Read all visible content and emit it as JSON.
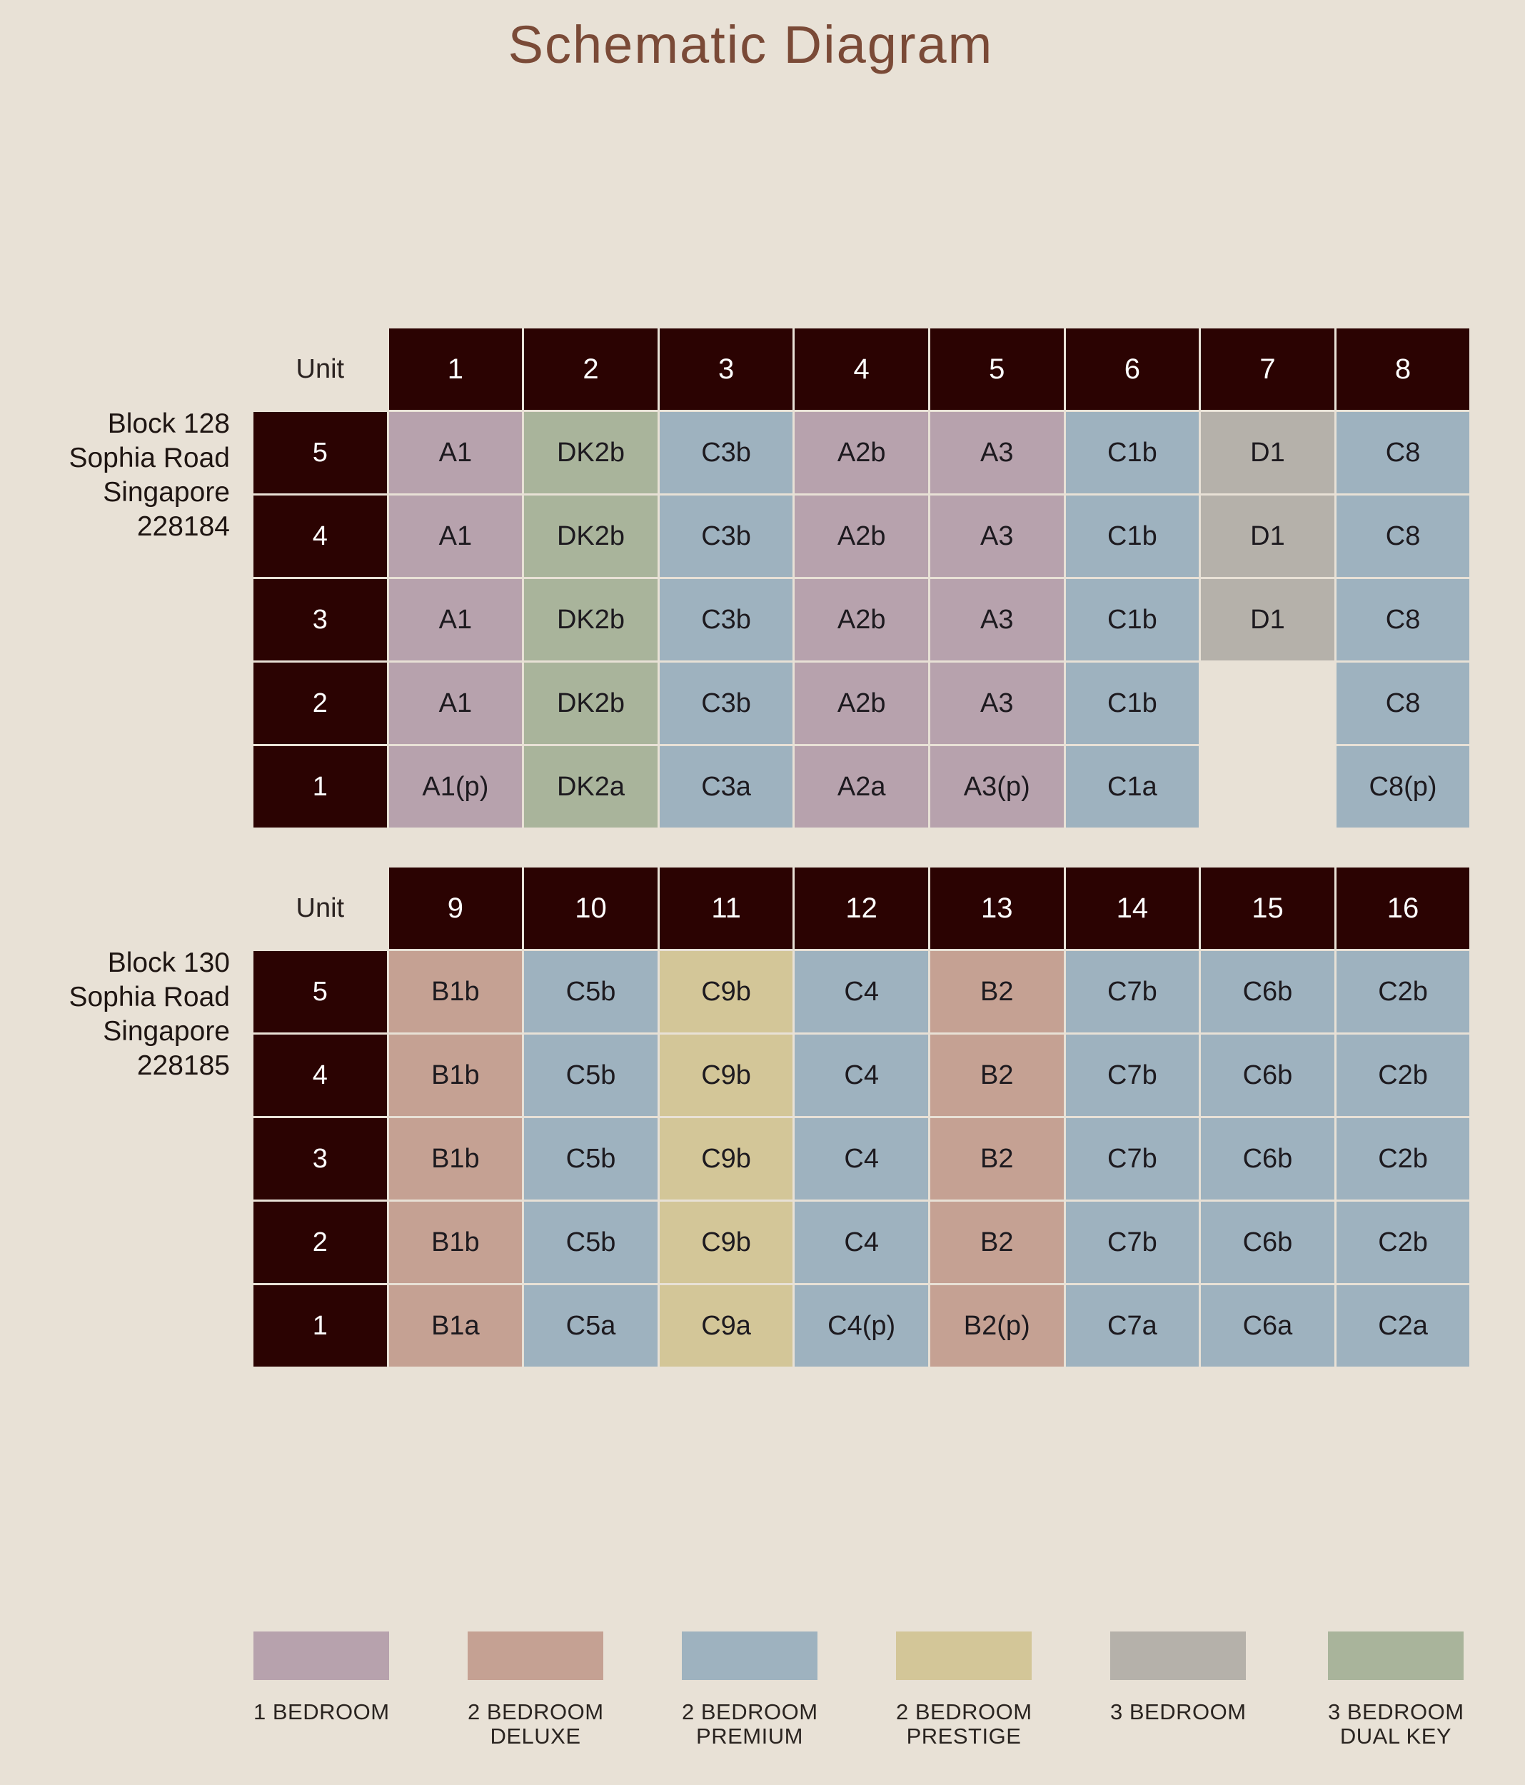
{
  "title": "Schematic Diagram",
  "unit_header": "Unit",
  "colors": {
    "one_bedroom": "#b7a2ad",
    "two_bedroom_deluxe": "#c5a193",
    "two_bedroom_premium": "#9eb2bf",
    "two_bedroom_prestige": "#d3c698",
    "three_bedroom": "#b5b1aa",
    "three_bedroom_dual_key": "#a9b49b"
  },
  "blocks": [
    {
      "address": [
        "Block 128",
        "Sophia Road",
        "Singapore",
        "228184"
      ],
      "units": [
        "1",
        "2",
        "3",
        "4",
        "5",
        "6",
        "7",
        "8"
      ],
      "rows": [
        {
          "floor": "5",
          "cells": [
            {
              "label": "A1",
              "type": "one_bedroom"
            },
            {
              "label": "DK2b",
              "type": "three_bedroom_dual_key"
            },
            {
              "label": "C3b",
              "type": "two_bedroom_premium"
            },
            {
              "label": "A2b",
              "type": "one_bedroom"
            },
            {
              "label": "A3",
              "type": "one_bedroom"
            },
            {
              "label": "C1b",
              "type": "two_bedroom_premium"
            },
            {
              "label": "D1",
              "type": "three_bedroom"
            },
            {
              "label": "C8",
              "type": "two_bedroom_premium"
            }
          ]
        },
        {
          "floor": "4",
          "cells": [
            {
              "label": "A1",
              "type": "one_bedroom"
            },
            {
              "label": "DK2b",
              "type": "three_bedroom_dual_key"
            },
            {
              "label": "C3b",
              "type": "two_bedroom_premium"
            },
            {
              "label": "A2b",
              "type": "one_bedroom"
            },
            {
              "label": "A3",
              "type": "one_bedroom"
            },
            {
              "label": "C1b",
              "type": "two_bedroom_premium"
            },
            {
              "label": "D1",
              "type": "three_bedroom"
            },
            {
              "label": "C8",
              "type": "two_bedroom_premium"
            }
          ]
        },
        {
          "floor": "3",
          "cells": [
            {
              "label": "A1",
              "type": "one_bedroom"
            },
            {
              "label": "DK2b",
              "type": "three_bedroom_dual_key"
            },
            {
              "label": "C3b",
              "type": "two_bedroom_premium"
            },
            {
              "label": "A2b",
              "type": "one_bedroom"
            },
            {
              "label": "A3",
              "type": "one_bedroom"
            },
            {
              "label": "C1b",
              "type": "two_bedroom_premium"
            },
            {
              "label": "D1",
              "type": "three_bedroom"
            },
            {
              "label": "C8",
              "type": "two_bedroom_premium"
            }
          ]
        },
        {
          "floor": "2",
          "cells": [
            {
              "label": "A1",
              "type": "one_bedroom"
            },
            {
              "label": "DK2b",
              "type": "three_bedroom_dual_key"
            },
            {
              "label": "C3b",
              "type": "two_bedroom_premium"
            },
            {
              "label": "A2b",
              "type": "one_bedroom"
            },
            {
              "label": "A3",
              "type": "one_bedroom"
            },
            {
              "label": "C1b",
              "type": "two_bedroom_premium"
            },
            {
              "label": "",
              "type": "empty"
            },
            {
              "label": "C8",
              "type": "two_bedroom_premium"
            }
          ]
        },
        {
          "floor": "1",
          "cells": [
            {
              "label": "A1(p)",
              "type": "one_bedroom"
            },
            {
              "label": "DK2a",
              "type": "three_bedroom_dual_key"
            },
            {
              "label": "C3a",
              "type": "two_bedroom_premium"
            },
            {
              "label": "A2a",
              "type": "one_bedroom"
            },
            {
              "label": "A3(p)",
              "type": "one_bedroom"
            },
            {
              "label": "C1a",
              "type": "two_bedroom_premium"
            },
            {
              "label": "",
              "type": "empty"
            },
            {
              "label": "C8(p)",
              "type": "two_bedroom_premium"
            }
          ]
        }
      ]
    },
    {
      "address": [
        "Block 130",
        "Sophia Road",
        "Singapore",
        "228185"
      ],
      "units": [
        "9",
        "10",
        "11",
        "12",
        "13",
        "14",
        "15",
        "16"
      ],
      "rows": [
        {
          "floor": "5",
          "cells": [
            {
              "label": "B1b",
              "type": "two_bedroom_deluxe"
            },
            {
              "label": "C5b",
              "type": "two_bedroom_premium"
            },
            {
              "label": "C9b",
              "type": "two_bedroom_prestige"
            },
            {
              "label": "C4",
              "type": "two_bedroom_premium"
            },
            {
              "label": "B2",
              "type": "two_bedroom_deluxe"
            },
            {
              "label": "C7b",
              "type": "two_bedroom_premium"
            },
            {
              "label": "C6b",
              "type": "two_bedroom_premium"
            },
            {
              "label": "C2b",
              "type": "two_bedroom_premium"
            }
          ]
        },
        {
          "floor": "4",
          "cells": [
            {
              "label": "B1b",
              "type": "two_bedroom_deluxe"
            },
            {
              "label": "C5b",
              "type": "two_bedroom_premium"
            },
            {
              "label": "C9b",
              "type": "two_bedroom_prestige"
            },
            {
              "label": "C4",
              "type": "two_bedroom_premium"
            },
            {
              "label": "B2",
              "type": "two_bedroom_deluxe"
            },
            {
              "label": "C7b",
              "type": "two_bedroom_premium"
            },
            {
              "label": "C6b",
              "type": "two_bedroom_premium"
            },
            {
              "label": "C2b",
              "type": "two_bedroom_premium"
            }
          ]
        },
        {
          "floor": "3",
          "cells": [
            {
              "label": "B1b",
              "type": "two_bedroom_deluxe"
            },
            {
              "label": "C5b",
              "type": "two_bedroom_premium"
            },
            {
              "label": "C9b",
              "type": "two_bedroom_prestige"
            },
            {
              "label": "C4",
              "type": "two_bedroom_premium"
            },
            {
              "label": "B2",
              "type": "two_bedroom_deluxe"
            },
            {
              "label": "C7b",
              "type": "two_bedroom_premium"
            },
            {
              "label": "C6b",
              "type": "two_bedroom_premium"
            },
            {
              "label": "C2b",
              "type": "two_bedroom_premium"
            }
          ]
        },
        {
          "floor": "2",
          "cells": [
            {
              "label": "B1b",
              "type": "two_bedroom_deluxe"
            },
            {
              "label": "C5b",
              "type": "two_bedroom_premium"
            },
            {
              "label": "C9b",
              "type": "two_bedroom_prestige"
            },
            {
              "label": "C4",
              "type": "two_bedroom_premium"
            },
            {
              "label": "B2",
              "type": "two_bedroom_deluxe"
            },
            {
              "label": "C7b",
              "type": "two_bedroom_premium"
            },
            {
              "label": "C6b",
              "type": "two_bedroom_premium"
            },
            {
              "label": "C2b",
              "type": "two_bedroom_premium"
            }
          ]
        },
        {
          "floor": "1",
          "cells": [
            {
              "label": "B1a",
              "type": "two_bedroom_deluxe"
            },
            {
              "label": "C5a",
              "type": "two_bedroom_premium"
            },
            {
              "label": "C9a",
              "type": "two_bedroom_prestige"
            },
            {
              "label": "C4(p)",
              "type": "two_bedroom_premium"
            },
            {
              "label": "B2(p)",
              "type": "two_bedroom_deluxe"
            },
            {
              "label": "C7a",
              "type": "two_bedroom_premium"
            },
            {
              "label": "C6a",
              "type": "two_bedroom_premium"
            },
            {
              "label": "C2a",
              "type": "two_bedroom_premium"
            }
          ]
        }
      ]
    }
  ],
  "legend": [
    {
      "type": "one_bedroom",
      "lines": [
        "1 BEDROOM"
      ]
    },
    {
      "type": "two_bedroom_deluxe",
      "lines": [
        "2 BEDROOM",
        "DELUXE"
      ]
    },
    {
      "type": "two_bedroom_premium",
      "lines": [
        "2 BEDROOM",
        "PREMIUM"
      ]
    },
    {
      "type": "two_bedroom_prestige",
      "lines": [
        "2 BEDROOM",
        "PRESTIGE"
      ]
    },
    {
      "type": "three_bedroom",
      "lines": [
        "3 BEDROOM"
      ]
    },
    {
      "type": "three_bedroom_dual_key",
      "lines": [
        "3 BEDROOM",
        "DUAL KEY"
      ]
    }
  ]
}
